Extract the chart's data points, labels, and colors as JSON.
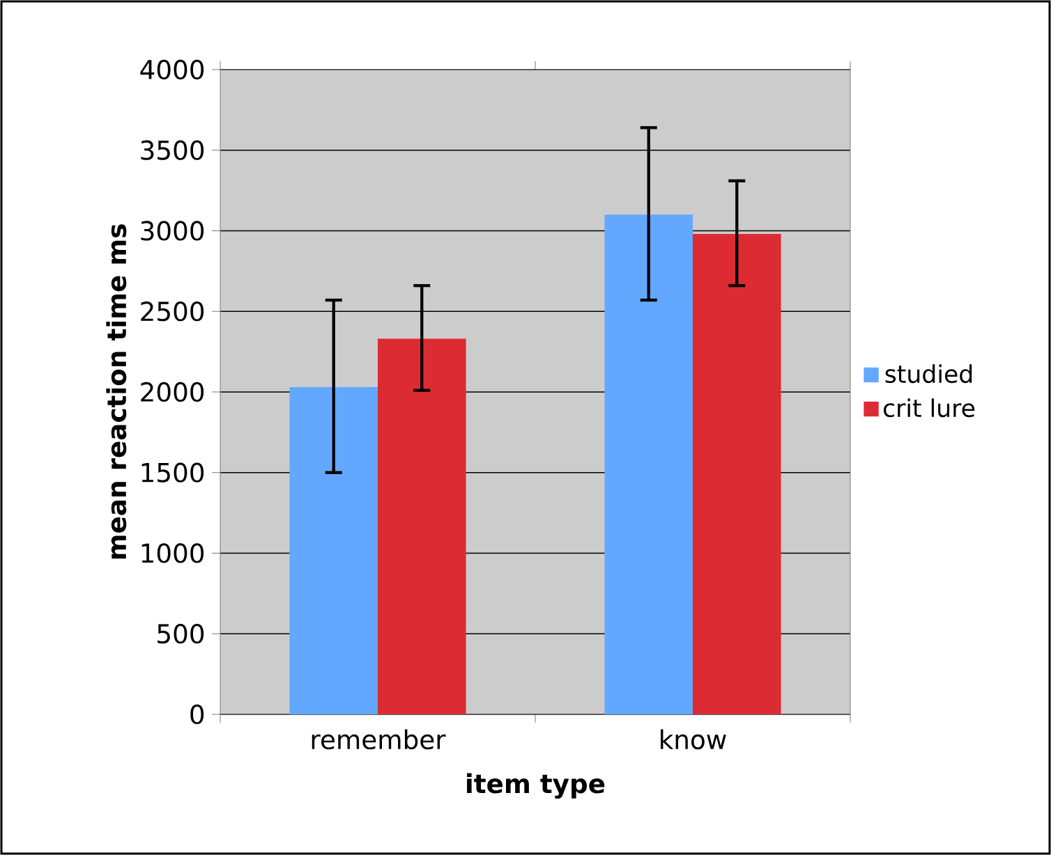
{
  "chart_data": {
    "type": "bar",
    "categories": [
      "remember",
      "know"
    ],
    "xlabel": "item type",
    "ylabel": "mean reaction time ms",
    "series": [
      {
        "name": "studied",
        "color": "#63a8ff",
        "values": [
          2030,
          3100
        ],
        "errors": [
          [
            1500,
            2570
          ],
          [
            2570,
            3640
          ]
        ]
      },
      {
        "name": "crit lure",
        "color": "#dd2b33",
        "values": [
          2330,
          2980
        ],
        "errors": [
          [
            2010,
            2660
          ],
          [
            2660,
            3310
          ]
        ]
      }
    ],
    "ylim": [
      0,
      4000
    ],
    "yticks": [
      0,
      500,
      1000,
      1500,
      2000,
      2500,
      3000,
      3500,
      4000
    ],
    "grid": "y",
    "legend": "right"
  }
}
